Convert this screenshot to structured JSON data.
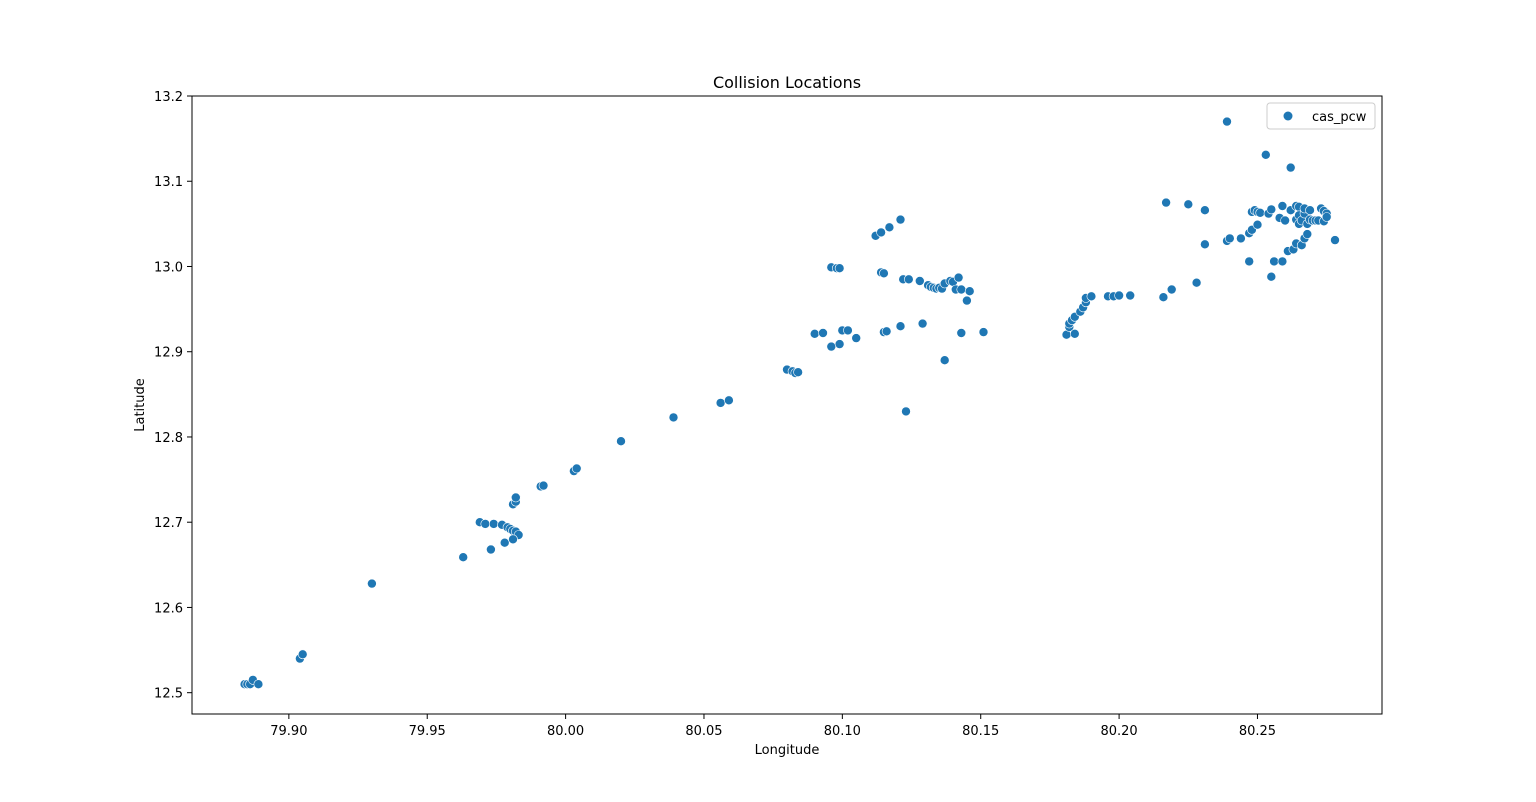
{
  "chart_data": {
    "type": "scatter",
    "title": "Collision Locations",
    "xlabel": "Longitude",
    "ylabel": "Latitude",
    "xlim": [
      79.865,
      80.295
    ],
    "ylim": [
      12.475,
      13.2
    ],
    "xticks": [
      79.9,
      79.95,
      80.0,
      80.05,
      80.1,
      80.15,
      80.2,
      80.25
    ],
    "xtick_labels": [
      "79.90",
      "79.95",
      "80.00",
      "80.05",
      "80.10",
      "80.15",
      "80.20",
      "80.25"
    ],
    "yticks": [
      12.5,
      12.6,
      12.7,
      12.8,
      12.9,
      13.0,
      13.1,
      13.2
    ],
    "ytick_labels": [
      "12.5",
      "12.6",
      "12.7",
      "12.8",
      "12.9",
      "13.0",
      "13.1",
      "13.2"
    ],
    "grid": false,
    "legend_position": "top-right",
    "marker_color": "#1f77b4",
    "series": [
      {
        "name": "cas_pcw",
        "points": [
          [
            79.884,
            12.51
          ],
          [
            79.885,
            12.51
          ],
          [
            79.886,
            12.51
          ],
          [
            79.887,
            12.515
          ],
          [
            79.889,
            12.51
          ],
          [
            79.904,
            12.54
          ],
          [
            79.905,
            12.545
          ],
          [
            79.93,
            12.628
          ],
          [
            79.963,
            12.659
          ],
          [
            79.973,
            12.668
          ],
          [
            79.969,
            12.7
          ],
          [
            79.971,
            12.698
          ],
          [
            79.974,
            12.698
          ],
          [
            79.977,
            12.697
          ],
          [
            79.979,
            12.694
          ],
          [
            79.98,
            12.692
          ],
          [
            79.981,
            12.69
          ],
          [
            79.982,
            12.689
          ],
          [
            79.983,
            12.685
          ],
          [
            79.978,
            12.676
          ],
          [
            79.981,
            12.68
          ],
          [
            79.981,
            12.721
          ],
          [
            79.982,
            12.724
          ],
          [
            79.982,
            12.729
          ],
          [
            79.991,
            12.742
          ],
          [
            79.992,
            12.743
          ],
          [
            80.003,
            12.76
          ],
          [
            80.004,
            12.763
          ],
          [
            80.02,
            12.795
          ],
          [
            80.039,
            12.823
          ],
          [
            80.056,
            12.84
          ],
          [
            80.059,
            12.843
          ],
          [
            80.08,
            12.879
          ],
          [
            80.082,
            12.877
          ],
          [
            80.083,
            12.875
          ],
          [
            80.084,
            12.876
          ],
          [
            80.09,
            12.921
          ],
          [
            80.093,
            12.922
          ],
          [
            80.096,
            12.906
          ],
          [
            80.099,
            12.909
          ],
          [
            80.1,
            12.925
          ],
          [
            80.102,
            12.925
          ],
          [
            80.105,
            12.916
          ],
          [
            80.096,
            12.999
          ],
          [
            80.098,
            12.998
          ],
          [
            80.099,
            12.998
          ],
          [
            80.112,
            13.036
          ],
          [
            80.114,
            13.04
          ],
          [
            80.117,
            13.046
          ],
          [
            80.121,
            13.055
          ],
          [
            80.114,
            12.993
          ],
          [
            80.115,
            12.992
          ],
          [
            80.115,
            12.923
          ],
          [
            80.116,
            12.924
          ],
          [
            80.121,
            12.93
          ],
          [
            80.129,
            12.933
          ],
          [
            80.123,
            12.83
          ],
          [
            80.122,
            12.985
          ],
          [
            80.124,
            12.985
          ],
          [
            80.128,
            12.983
          ],
          [
            80.131,
            12.978
          ],
          [
            80.132,
            12.976
          ],
          [
            80.133,
            12.975
          ],
          [
            80.134,
            12.974
          ],
          [
            80.135,
            12.975
          ],
          [
            80.136,
            12.974
          ],
          [
            80.137,
            12.98
          ],
          [
            80.139,
            12.983
          ],
          [
            80.14,
            12.982
          ],
          [
            80.141,
            12.973
          ],
          [
            80.142,
            12.987
          ],
          [
            80.143,
            12.973
          ],
          [
            80.145,
            12.96
          ],
          [
            80.146,
            12.971
          ],
          [
            80.143,
            12.922
          ],
          [
            80.137,
            12.89
          ],
          [
            80.151,
            12.923
          ],
          [
            80.181,
            12.92
          ],
          [
            80.182,
            12.929
          ],
          [
            80.182,
            12.933
          ],
          [
            80.183,
            12.937
          ],
          [
            80.184,
            12.941
          ],
          [
            80.184,
            12.921
          ],
          [
            80.186,
            12.947
          ],
          [
            80.187,
            12.952
          ],
          [
            80.188,
            12.958
          ],
          [
            80.188,
            12.963
          ],
          [
            80.19,
            12.965
          ],
          [
            80.196,
            12.965
          ],
          [
            80.198,
            12.965
          ],
          [
            80.2,
            12.966
          ],
          [
            80.204,
            12.966
          ],
          [
            80.216,
            12.964
          ],
          [
            80.219,
            12.973
          ],
          [
            80.228,
            12.981
          ],
          [
            80.217,
            13.075
          ],
          [
            80.225,
            13.073
          ],
          [
            80.231,
            13.066
          ],
          [
            80.231,
            13.026
          ],
          [
            80.239,
            13.17
          ],
          [
            80.239,
            13.03
          ],
          [
            80.24,
            13.033
          ],
          [
            80.244,
            13.033
          ],
          [
            80.247,
            13.006
          ],
          [
            80.247,
            13.039
          ],
          [
            80.248,
            13.043
          ],
          [
            80.248,
            13.064
          ],
          [
            80.249,
            13.066
          ],
          [
            80.25,
            13.064
          ],
          [
            80.25,
            13.049
          ],
          [
            80.251,
            13.063
          ],
          [
            80.253,
            13.131
          ],
          [
            80.254,
            13.062
          ],
          [
            80.255,
            13.067
          ],
          [
            80.255,
            12.988
          ],
          [
            80.256,
            13.006
          ],
          [
            80.258,
            13.057
          ],
          [
            80.259,
            13.071
          ],
          [
            80.259,
            13.006
          ],
          [
            80.26,
            13.054
          ],
          [
            80.261,
            13.018
          ],
          [
            80.262,
            13.116
          ],
          [
            80.262,
            13.066
          ],
          [
            80.263,
            13.02
          ],
          [
            80.264,
            13.071
          ],
          [
            80.264,
            13.055
          ],
          [
            80.264,
            13.027
          ],
          [
            80.265,
            13.07
          ],
          [
            80.265,
            13.05
          ],
          [
            80.265,
            13.06
          ],
          [
            80.266,
            13.025
          ],
          [
            80.266,
            13.054
          ],
          [
            80.267,
            13.062
          ],
          [
            80.267,
            13.068
          ],
          [
            80.267,
            13.033
          ],
          [
            80.268,
            13.038
          ],
          [
            80.268,
            13.05
          ],
          [
            80.269,
            13.055
          ],
          [
            80.269,
            13.066
          ],
          [
            80.27,
            13.054
          ],
          [
            80.271,
            13.054
          ],
          [
            80.272,
            13.054
          ],
          [
            80.273,
            13.068
          ],
          [
            80.274,
            13.053
          ],
          [
            80.274,
            13.065
          ],
          [
            80.275,
            13.062
          ],
          [
            80.275,
            13.058
          ],
          [
            80.278,
            13.031
          ]
        ]
      }
    ]
  }
}
